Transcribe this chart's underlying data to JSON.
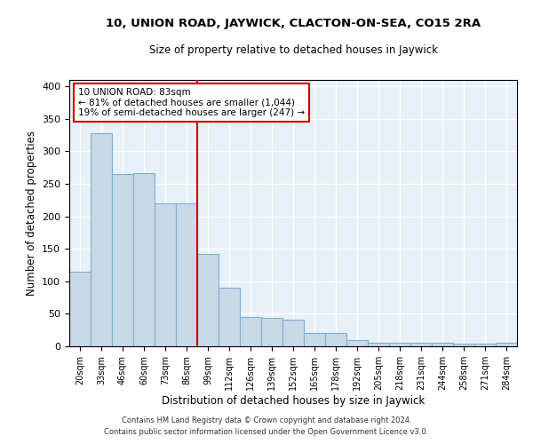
{
  "title": "10, UNION ROAD, JAYWICK, CLACTON-ON-SEA, CO15 2RA",
  "subtitle": "Size of property relative to detached houses in Jaywick",
  "xlabel": "Distribution of detached houses by size in Jaywick",
  "ylabel": "Number of detached properties",
  "bar_color": "#c9d9e8",
  "bar_edge_color": "#7bafd4",
  "background_color": "#e8f0f8",
  "grid_color": "#ffffff",
  "categories": [
    "20sqm",
    "33sqm",
    "46sqm",
    "60sqm",
    "73sqm",
    "86sqm",
    "99sqm",
    "112sqm",
    "126sqm",
    "139sqm",
    "152sqm",
    "165sqm",
    "178sqm",
    "192sqm",
    "205sqm",
    "218sqm",
    "231sqm",
    "244sqm",
    "258sqm",
    "271sqm",
    "284sqm"
  ],
  "values": [
    115,
    328,
    265,
    267,
    220,
    220,
    142,
    90,
    45,
    44,
    41,
    20,
    20,
    9,
    6,
    5,
    6,
    5,
    4,
    4,
    5
  ],
  "vline_x": 6,
  "vline_color": "#cc0000",
  "annotation_text": "10 UNION ROAD: 83sqm\n← 81% of detached houses are smaller (1,044)\n19% of semi-detached houses are larger (247) →",
  "ylim": [
    0,
    410
  ],
  "yticks": [
    0,
    50,
    100,
    150,
    200,
    250,
    300,
    350,
    400
  ],
  "footer1": "Contains HM Land Registry data © Crown copyright and database right 2024.",
  "footer2": "Contains public sector information licensed under the Open Government Licence v3.0."
}
